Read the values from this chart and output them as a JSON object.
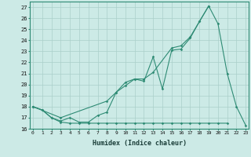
{
  "xlabel": "Humidex (Indice chaleur)",
  "x_values": [
    0,
    1,
    2,
    3,
    4,
    5,
    6,
    7,
    8,
    9,
    10,
    11,
    12,
    13,
    14,
    15,
    16,
    17,
    18,
    19,
    20,
    21,
    22,
    23
  ],
  "line1_x": [
    0,
    1,
    2,
    3,
    4,
    5,
    6,
    7,
    8,
    9,
    10,
    11,
    12,
    13,
    14,
    15,
    16,
    17,
    18,
    19,
    20,
    21
  ],
  "line1_y": [
    18.0,
    17.7,
    17.0,
    16.6,
    16.5,
    16.5,
    16.5,
    16.5,
    16.5,
    16.5,
    16.5,
    16.5,
    16.5,
    16.5,
    16.5,
    16.5,
    16.5,
    16.5,
    16.5,
    16.5,
    16.5,
    16.5
  ],
  "line2_x": [
    0,
    1,
    2,
    3,
    4,
    5,
    6,
    7,
    8,
    9,
    10,
    11,
    12,
    13,
    14,
    15,
    16,
    17,
    18,
    19,
    20,
    21,
    22,
    23
  ],
  "line2_y": [
    18.0,
    17.7,
    17.0,
    16.7,
    17.0,
    16.6,
    16.6,
    17.2,
    17.5,
    19.3,
    20.2,
    20.5,
    20.3,
    22.5,
    19.6,
    23.1,
    23.2,
    24.2,
    25.7,
    27.1,
    25.5,
    21.0,
    18.0,
    16.3
  ],
  "line3_x": [
    0,
    3,
    8,
    9,
    10,
    11,
    12,
    13,
    15,
    16,
    17,
    18,
    19
  ],
  "line3_y": [
    18.0,
    17.0,
    18.5,
    19.3,
    19.9,
    20.5,
    20.5,
    21.1,
    23.3,
    23.5,
    24.3,
    25.7,
    27.1
  ],
  "line_color": "#2e8b74",
  "bg_color": "#cceae6",
  "grid_color": "#aacfca",
  "ylim_min": 16.0,
  "ylim_max": 27.5,
  "yticks": [
    16,
    17,
    18,
    19,
    20,
    21,
    22,
    23,
    24,
    25,
    26,
    27
  ],
  "xlim_min": -0.3,
  "xlim_max": 23.3
}
